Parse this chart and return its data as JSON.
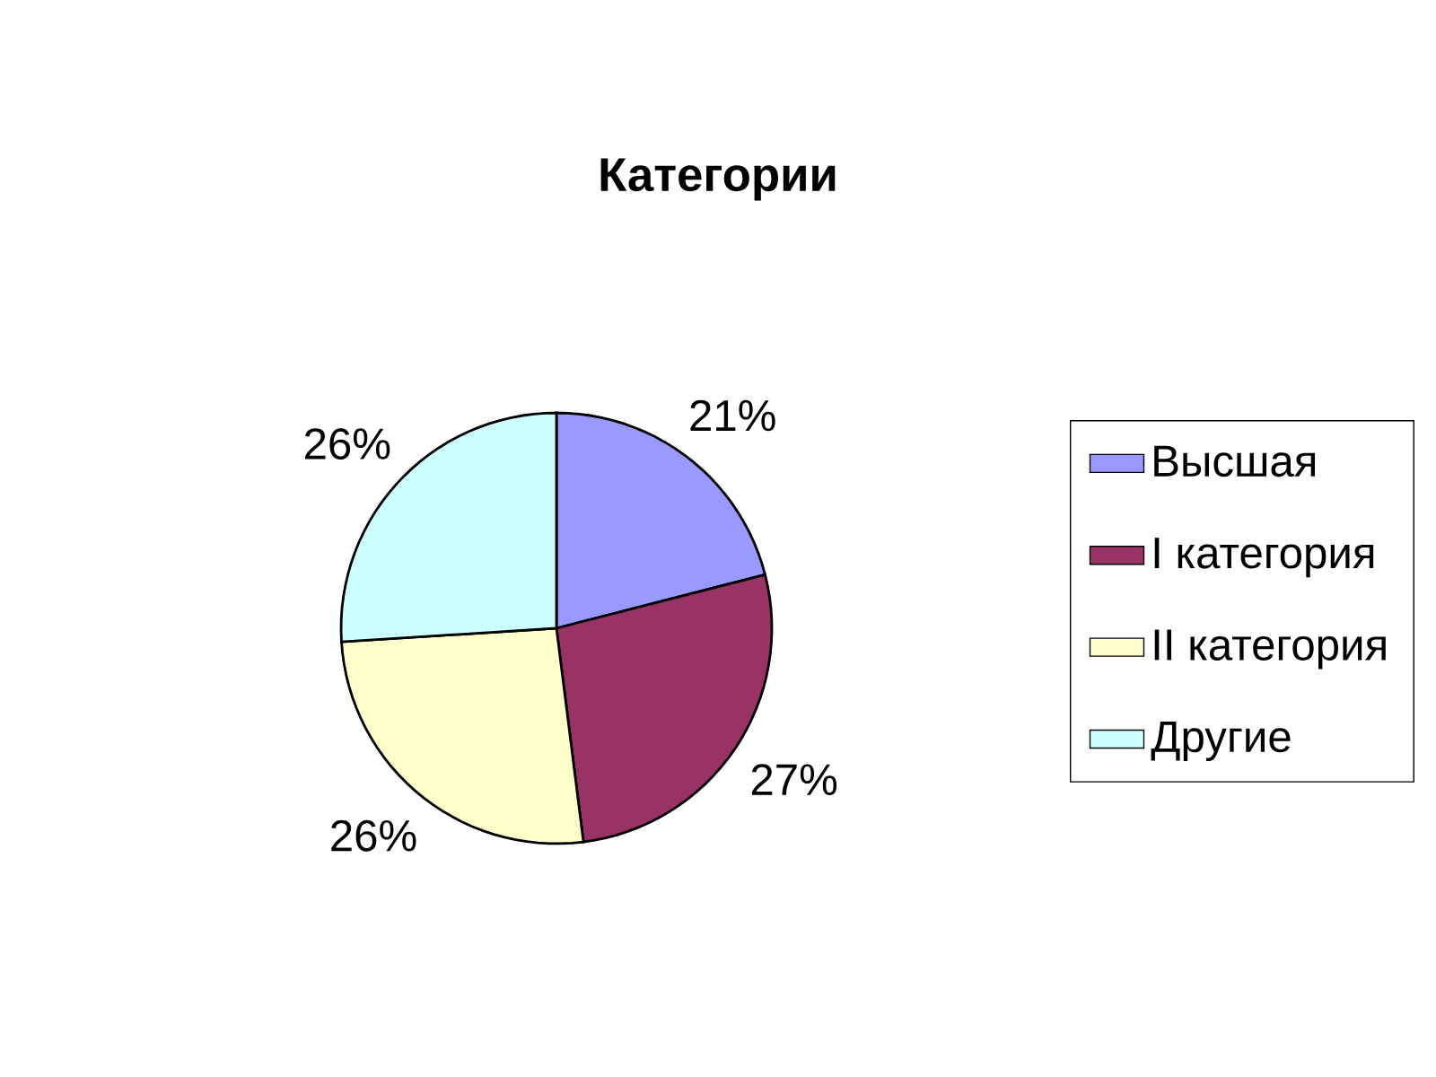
{
  "chart_data": {
    "type": "pie",
    "title": "Категории",
    "categories": [
      "Высшая",
      "I категория",
      "II категория",
      "Другие"
    ],
    "values": [
      21,
      27,
      26,
      26
    ],
    "colors": [
      "#9999ff",
      "#993366",
      "#ffffcc",
      "#ccffff"
    ],
    "value_labels": [
      "21%",
      "27%",
      "26%",
      "26%"
    ],
    "legend": "right"
  }
}
